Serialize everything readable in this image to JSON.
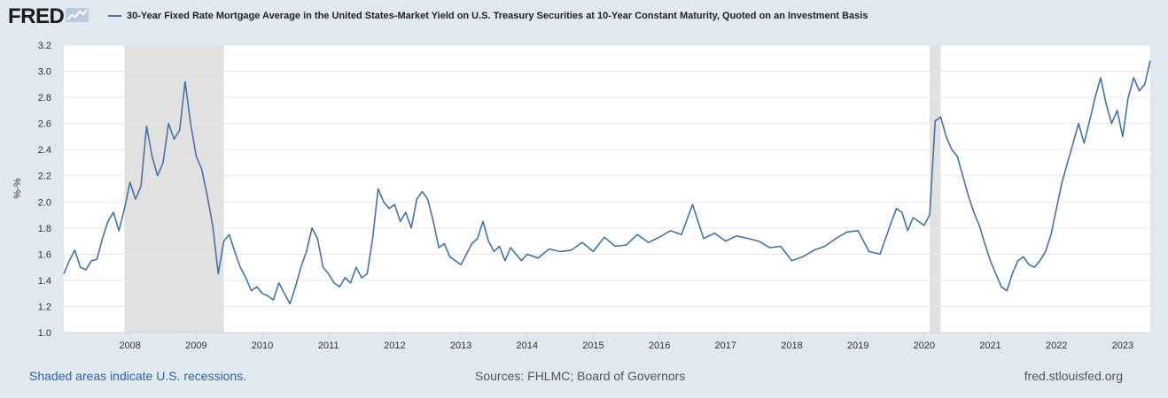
{
  "header": {
    "logo_text": "FRED",
    "logo_icon": "line-chart-icon",
    "legend_label": "30-Year Fixed Rate Mortgage Average in the United States-Market Yield on U.S. Treasury Securities at 10-Year Constant Maturity, Quoted on an Investment Basis"
  },
  "footer": {
    "recession_note": "Shaded areas indicate U.S. recessions.",
    "sources": "Sources: FHLMC; Board of Governors",
    "site": "fred.stlouisfed.org"
  },
  "colors": {
    "series": "#4572a7",
    "recession": "#e1e1e1",
    "grid": "#e6e6e6",
    "background": "#e1e9f0",
    "plot": "#ffffff"
  },
  "chart_data": {
    "type": "line",
    "title": "",
    "xlabel": "",
    "ylabel": "%-%",
    "ylim": [
      1.0,
      3.2
    ],
    "yticks": [
      "1.0",
      "1.2",
      "1.4",
      "1.6",
      "1.8",
      "2.0",
      "2.2",
      "2.4",
      "2.6",
      "2.8",
      "3.0",
      "3.2"
    ],
    "xlim": [
      "2007-01",
      "2023-06"
    ],
    "xticks": [
      "2008",
      "2009",
      "2010",
      "2011",
      "2012",
      "2013",
      "2014",
      "2015",
      "2016",
      "2017",
      "2018",
      "2019",
      "2020",
      "2021",
      "2022",
      "2023"
    ],
    "grid": true,
    "recessions": [
      {
        "start": "2007-12",
        "end": "2009-06"
      },
      {
        "start": "2020-02",
        "end": "2020-04"
      }
    ],
    "series": [
      {
        "name": "30-Year Fixed Rate Mortgage Average in the United States-Market Yield on U.S. Treasury Securities at 10-Year Constant Maturity, Quoted on an Investment Basis",
        "x": [
          "2007-01",
          "2007-02",
          "2007-03",
          "2007-04",
          "2007-05",
          "2007-06",
          "2007-07",
          "2007-08",
          "2007-09",
          "2007-10",
          "2007-11",
          "2007-12",
          "2008-01",
          "2008-02",
          "2008-03",
          "2008-04",
          "2008-05",
          "2008-06",
          "2008-07",
          "2008-08",
          "2008-09",
          "2008-10",
          "2008-11",
          "2008-12",
          "2009-01",
          "2009-02",
          "2009-03",
          "2009-04",
          "2009-05",
          "2009-06",
          "2009-07",
          "2009-08",
          "2009-09",
          "2009-10",
          "2009-11",
          "2009-12",
          "2010-01",
          "2010-02",
          "2010-03",
          "2010-04",
          "2010-05",
          "2010-06",
          "2010-07",
          "2010-08",
          "2010-09",
          "2010-10",
          "2010-11",
          "2010-12",
          "2011-01",
          "2011-02",
          "2011-03",
          "2011-04",
          "2011-05",
          "2011-06",
          "2011-07",
          "2011-08",
          "2011-09",
          "2011-10",
          "2011-11",
          "2011-12",
          "2012-01",
          "2012-02",
          "2012-03",
          "2012-04",
          "2012-05",
          "2012-06",
          "2012-07",
          "2012-08",
          "2012-09",
          "2012-10",
          "2012-11",
          "2012-12",
          "2013-01",
          "2013-02",
          "2013-03",
          "2013-04",
          "2013-05",
          "2013-06",
          "2013-07",
          "2013-08",
          "2013-09",
          "2013-10",
          "2013-11",
          "2013-12",
          "2014-01",
          "2014-03",
          "2014-05",
          "2014-07",
          "2014-09",
          "2014-11",
          "2015-01",
          "2015-03",
          "2015-05",
          "2015-07",
          "2015-09",
          "2015-11",
          "2016-01",
          "2016-03",
          "2016-05",
          "2016-07",
          "2016-09",
          "2016-11",
          "2017-01",
          "2017-03",
          "2017-05",
          "2017-07",
          "2017-09",
          "2017-11",
          "2018-01",
          "2018-03",
          "2018-05",
          "2018-07",
          "2018-09",
          "2018-11",
          "2019-01",
          "2019-03",
          "2019-05",
          "2019-07",
          "2019-08",
          "2019-09",
          "2019-10",
          "2019-11",
          "2019-12",
          "2020-01",
          "2020-02",
          "2020-03",
          "2020-04",
          "2020-05",
          "2020-06",
          "2020-07",
          "2020-08",
          "2020-09",
          "2020-10",
          "2020-11",
          "2020-12",
          "2021-01",
          "2021-02",
          "2021-03",
          "2021-04",
          "2021-05",
          "2021-06",
          "2021-07",
          "2021-08",
          "2021-09",
          "2021-10",
          "2021-11",
          "2021-12",
          "2022-01",
          "2022-02",
          "2022-03",
          "2022-04",
          "2022-05",
          "2022-06",
          "2022-07",
          "2022-08",
          "2022-09",
          "2022-10",
          "2022-11",
          "2022-12",
          "2023-01",
          "2023-02",
          "2023-03",
          "2023-04",
          "2023-05",
          "2023-06"
        ],
        "values": [
          1.45,
          1.55,
          1.63,
          1.5,
          1.48,
          1.55,
          1.56,
          1.72,
          1.85,
          1.92,
          1.78,
          1.95,
          2.15,
          2.02,
          2.12,
          2.58,
          2.35,
          2.2,
          2.3,
          2.6,
          2.48,
          2.55,
          2.92,
          2.6,
          2.35,
          2.25,
          2.05,
          1.82,
          1.45,
          1.7,
          1.75,
          1.62,
          1.5,
          1.42,
          1.32,
          1.35,
          1.3,
          1.28,
          1.25,
          1.38,
          1.3,
          1.22,
          1.35,
          1.5,
          1.62,
          1.8,
          1.72,
          1.5,
          1.45,
          1.38,
          1.35,
          1.42,
          1.38,
          1.5,
          1.42,
          1.45,
          1.72,
          2.1,
          2.0,
          1.95,
          1.98,
          1.85,
          1.92,
          1.8,
          2.02,
          2.08,
          2.02,
          1.85,
          1.65,
          1.68,
          1.58,
          1.55,
          1.52,
          1.6,
          1.68,
          1.72,
          1.85,
          1.7,
          1.62,
          1.66,
          1.55,
          1.65,
          1.6,
          1.55,
          1.6,
          1.57,
          1.64,
          1.62,
          1.63,
          1.69,
          1.62,
          1.73,
          1.66,
          1.67,
          1.75,
          1.69,
          1.73,
          1.78,
          1.75,
          1.98,
          1.72,
          1.76,
          1.7,
          1.74,
          1.72,
          1.7,
          1.65,
          1.66,
          1.55,
          1.58,
          1.63,
          1.66,
          1.72,
          1.77,
          1.78,
          1.62,
          1.6,
          1.84,
          1.95,
          1.92,
          1.78,
          1.88,
          1.85,
          1.82,
          1.9,
          2.62,
          2.65,
          2.5,
          2.4,
          2.35,
          2.2,
          2.05,
          1.92,
          1.82,
          1.68,
          1.55,
          1.45,
          1.35,
          1.32,
          1.45,
          1.55,
          1.58,
          1.52,
          1.5,
          1.55,
          1.62,
          1.75,
          1.95,
          2.15,
          2.3,
          2.45,
          2.6,
          2.45,
          2.62,
          2.8,
          2.95,
          2.75,
          2.6,
          2.7,
          2.5,
          2.8,
          2.95,
          2.85,
          2.9,
          3.08
        ]
      }
    ]
  }
}
